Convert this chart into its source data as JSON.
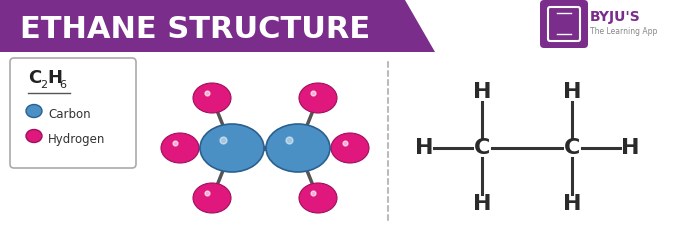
{
  "title": "ETHANE STRUCTURE",
  "title_bg_color": "#7B2D8B",
  "title_text_color": "#FFFFFF",
  "bg_color": "#FFFFFF",
  "carbon_color": "#4A90C4",
  "hydrogen_color": "#E0177C",
  "legend_box_color": "#FFFFFF",
  "legend_border_color": "#AAAAAA",
  "carbon_label": "Carbon",
  "hydrogen_label": "Hydrogen",
  "bond_color": "#555555",
  "dashed_line_color": "#BBBBBB",
  "structural_bond_color": "#333333",
  "byju_purple": "#7B2D8B",
  "carbon_edge": "#2a6090",
  "hydrogen_edge": "#a01060"
}
